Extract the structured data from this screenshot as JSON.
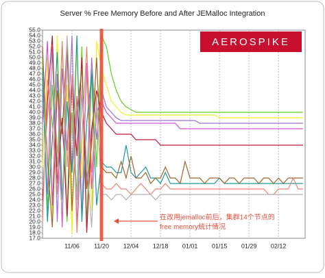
{
  "chart_data": {
    "type": "line",
    "title": "Server % Free Memory Before and After JEMalloc Integration",
    "logo": "AEROSPIKE",
    "annotation": [
      "在改用jemalloc前后，集群14个节点的",
      "free memory统计情况"
    ],
    "categories": [
      null,
      null,
      null,
      null,
      null,
      null,
      "11/06",
      null,
      null,
      null,
      null,
      null,
      "11/20",
      null,
      null,
      null,
      null,
      null,
      "12/04",
      null,
      null,
      null,
      null,
      null,
      "12/18",
      null,
      null,
      null,
      null,
      null,
      "01/01",
      null,
      null,
      null,
      null,
      null,
      "01/15",
      null,
      null,
      null,
      null,
      null,
      "01/29",
      null,
      null,
      null,
      null,
      null,
      "02/12",
      null,
      null,
      null,
      null,
      null
    ],
    "ylim": [
      17,
      55
    ],
    "yticks": [
      {
        "value": 17,
        "label": "17.0"
      },
      {
        "value": 18,
        "label": "18.0"
      },
      {
        "value": 19,
        "label": "19.0"
      },
      {
        "value": 20,
        "label": "20.0"
      },
      {
        "value": 21,
        "label": "21.0"
      },
      {
        "value": 22,
        "label": "22.0"
      },
      {
        "value": 23,
        "label": "23.0"
      },
      {
        "value": 24,
        "label": "24.0"
      },
      {
        "value": 25,
        "label": "25.0"
      },
      {
        "value": 26,
        "label": "26.0"
      },
      {
        "value": 27,
        "label": "27.0"
      },
      {
        "value": 28,
        "label": "28.0"
      },
      {
        "value": 29,
        "label": "29.0"
      },
      {
        "value": 30,
        "label": "30.0"
      },
      {
        "value": 31,
        "label": "31.0"
      },
      {
        "value": 32,
        "label": "32.0"
      },
      {
        "value": 33,
        "label": "33.0"
      },
      {
        "value": 34,
        "label": "34.0"
      },
      {
        "value": 35,
        "label": "35.0"
      },
      {
        "value": 36,
        "label": "36.0"
      },
      {
        "value": 37,
        "label": "37.0"
      },
      {
        "value": 38,
        "label": "38.0"
      },
      {
        "value": 39,
        "label": "39.0"
      },
      {
        "value": 40,
        "label": "40.0"
      },
      {
        "value": 41,
        "label": "41.0"
      },
      {
        "value": 42,
        "label": "42.0"
      },
      {
        "value": 43,
        "label": "43.0"
      },
      {
        "value": 44,
        "label": "44.0"
      },
      {
        "value": 45,
        "label": "45.0"
      },
      {
        "value": 46,
        "label": "46.0"
      },
      {
        "value": 47,
        "label": "47.0"
      },
      {
        "value": 48,
        "label": "48.0"
      },
      {
        "value": 49,
        "label": "49.0"
      },
      {
        "value": 50,
        "label": "50.0"
      },
      {
        "value": 51,
        "label": "51.0"
      },
      {
        "value": 52,
        "label": "52.0"
      },
      {
        "value": 53,
        "label": "53.0"
      },
      {
        "value": 54,
        "label": "54.0"
      },
      {
        "value": 55,
        "label": "55.0"
      }
    ],
    "grid": true,
    "series": [
      {
        "color": "#5cd11a",
        "values": [
          50,
          22,
          45,
          30,
          53,
          20,
          40,
          25,
          52,
          19,
          48,
          30,
          54,
          52,
          47,
          44,
          42,
          41,
          40.5,
          40,
          40,
          40,
          40,
          40,
          40,
          40,
          40,
          40,
          40,
          40,
          40,
          40,
          40,
          40,
          40,
          40,
          40,
          40,
          40,
          40,
          40,
          40,
          40,
          40,
          40,
          40,
          40,
          40,
          40,
          40,
          40,
          40,
          40,
          40
        ]
      },
      {
        "color": "#f0f020",
        "values": [
          30,
          50,
          20,
          54,
          25,
          45,
          18,
          52,
          28,
          47,
          22,
          53,
          48,
          45,
          42,
          41,
          40,
          39.5,
          39.5,
          39.5,
          39.5,
          39.5,
          39.5,
          39.5,
          39.5,
          39.5,
          39.5,
          39.5,
          39.5,
          39.5,
          39.5,
          39.5,
          39.5,
          39.5,
          39.5,
          39.5,
          39,
          39,
          39,
          39,
          39,
          39,
          39,
          39,
          39,
          39,
          39,
          39,
          39,
          39,
          39,
          39,
          39,
          39
        ]
      },
      {
        "color": "#9f6fd4",
        "values": [
          45,
          25,
          52,
          20,
          48,
          33,
          54,
          19,
          44,
          27,
          50,
          35,
          44,
          41,
          40,
          39,
          38.5,
          38.5,
          38.5,
          38.5,
          38.5,
          38.5,
          38.5,
          38.5,
          38.5,
          38.5,
          38.5,
          38.5,
          38.5,
          38.5,
          38.5,
          38.5,
          38,
          38,
          38,
          38,
          38,
          38,
          38,
          38,
          38,
          38,
          38,
          38,
          38,
          38,
          38,
          38,
          38,
          38,
          38,
          38,
          38,
          38
        ]
      },
      {
        "color": "#d24fd2",
        "values": [
          38,
          53,
          23,
          47,
          19,
          51,
          29,
          43,
          21,
          49,
          26,
          40,
          42,
          40,
          39,
          38,
          38,
          38,
          38,
          38,
          38,
          38,
          38,
          38,
          38,
          38,
          38,
          38,
          37,
          37,
          37,
          37,
          37,
          37,
          37,
          37,
          37,
          37,
          37,
          37,
          37,
          37,
          37,
          37,
          37,
          37,
          37,
          37,
          37,
          37,
          37,
          37,
          37,
          37
        ]
      },
      {
        "color": "#c0143c",
        "values": [
          24,
          42,
          54,
          27,
          39,
          21,
          46,
          32,
          50,
          18,
          37,
          44,
          40,
          38,
          37,
          36,
          36,
          36,
          36,
          35,
          35,
          35,
          35,
          35,
          34,
          34,
          34,
          34,
          34,
          34,
          34,
          34,
          34,
          34,
          34,
          34,
          34,
          34,
          34,
          34,
          34,
          34,
          34,
          34,
          34,
          34,
          34,
          34,
          34,
          34,
          34,
          34,
          34,
          34
        ]
      },
      {
        "color": "#1a9a9a",
        "values": [
          48,
          20,
          35,
          51,
          24,
          42,
          29,
          54,
          20,
          38,
          47,
          23,
          31,
          30,
          30,
          29,
          29,
          34,
          29,
          28,
          29,
          30,
          28,
          28,
          27,
          29,
          27,
          27,
          27,
          27,
          27,
          27,
          27,
          27,
          27,
          27,
          28,
          27,
          27,
          27,
          27,
          27,
          27,
          27,
          27,
          27,
          27,
          27,
          27,
          27,
          27,
          27,
          27,
          27
        ]
      },
      {
        "color": "#a0642a",
        "values": [
          52,
          31,
          19,
          44,
          36,
          53,
          22,
          40,
          48,
          26,
          34,
          50,
          30,
          29,
          29,
          28,
          31,
          28,
          32,
          28,
          28,
          29,
          27,
          28,
          28,
          30,
          28,
          28,
          27,
          31,
          28,
          28,
          28,
          27,
          28,
          28,
          28,
          27,
          28,
          28,
          27,
          28,
          28,
          28,
          27,
          28,
          28,
          27,
          28,
          27,
          28,
          28,
          28,
          28
        ]
      },
      {
        "color": "#f08070",
        "values": [
          20,
          46,
          38,
          25,
          53,
          30,
          47,
          18,
          35,
          52,
          29,
          41,
          27,
          26,
          26,
          27,
          26,
          26,
          25,
          26,
          27,
          26,
          25,
          26,
          26,
          27,
          26,
          26,
          26,
          26,
          26,
          26,
          26,
          26,
          26,
          26,
          26,
          26,
          26,
          26,
          26,
          26,
          26,
          26,
          26,
          26,
          25,
          25,
          26,
          26,
          26,
          28,
          26,
          26
        ]
      },
      {
        "color": "#b0b0b0",
        "values": [
          26,
          39,
          49,
          33,
          22,
          54,
          37,
          24,
          45,
          31,
          19,
          43,
          25,
          25,
          24,
          25,
          25,
          24,
          25,
          25,
          25,
          25,
          25,
          24,
          25,
          25,
          25,
          25,
          25,
          25,
          25,
          25,
          25,
          25,
          25,
          25,
          25,
          25,
          25,
          25,
          25,
          25,
          25,
          25,
          25,
          25,
          25,
          25,
          25,
          25,
          25,
          25,
          25,
          25
        ]
      }
    ]
  }
}
